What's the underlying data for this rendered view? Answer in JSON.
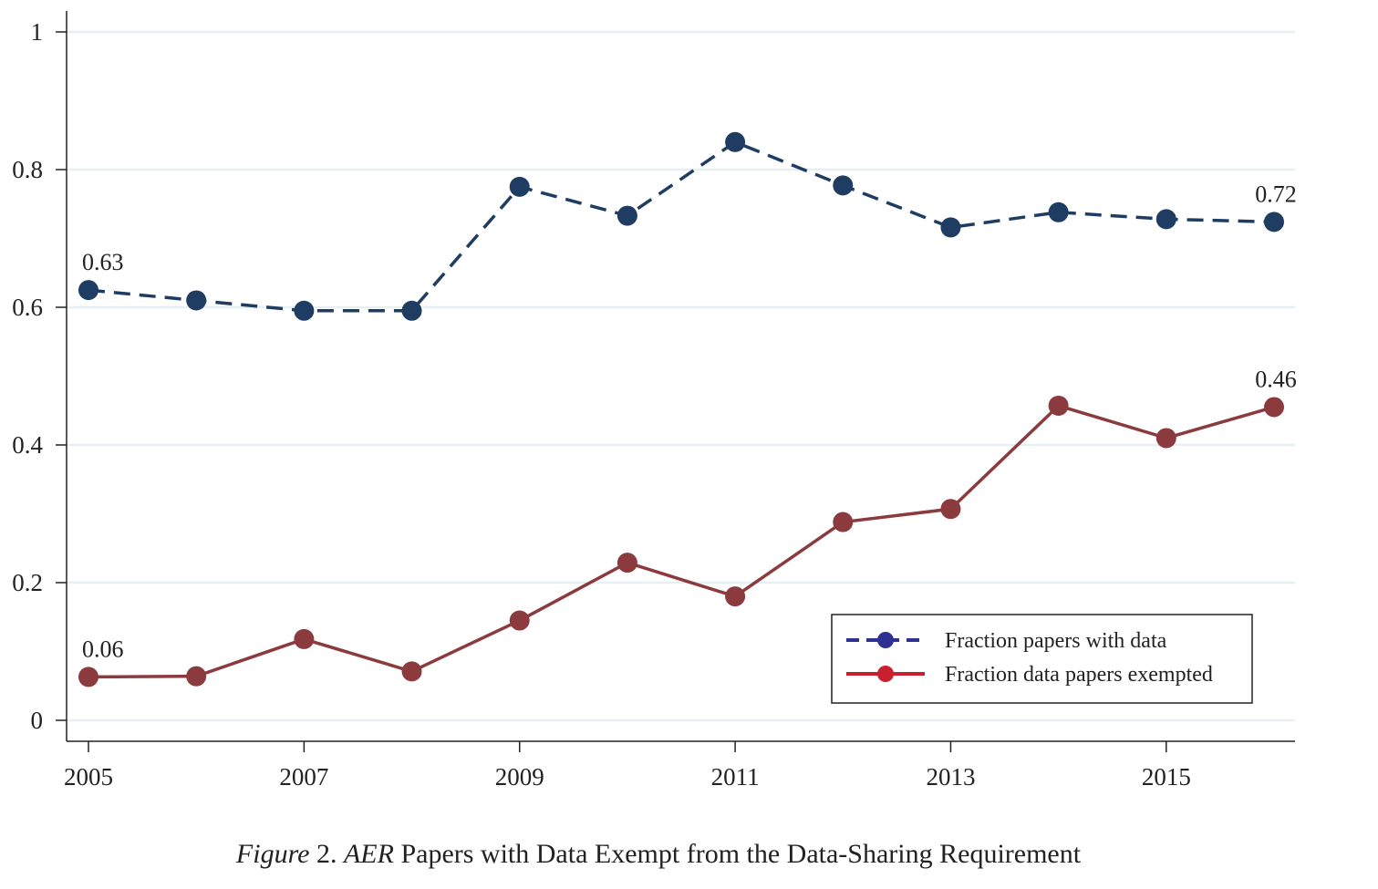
{
  "chart_data": {
    "type": "line",
    "title": "",
    "xlabel": "",
    "ylabel": "",
    "x": [
      2005,
      2006,
      2007,
      2008,
      2009,
      2010,
      2011,
      2012,
      2013,
      2014,
      2015,
      2016
    ],
    "xticks": [
      "2005",
      "2007",
      "2009",
      "2011",
      "2013",
      "2015"
    ],
    "yticks": [
      "0",
      "0.2",
      "0.4",
      "0.6",
      "0.8",
      "1"
    ],
    "xlim": [
      2004.8,
      2016.2
    ],
    "ylim": [
      -0.03,
      1.03
    ],
    "grid": true,
    "legend_position": "bottom-right",
    "series": [
      {
        "name": "Fraction papers with data",
        "style": "dashed",
        "color": "#1f3d63",
        "legend_color": "#2e3192",
        "values": [
          0.625,
          0.61,
          0.595,
          0.595,
          0.775,
          0.733,
          0.84,
          0.777,
          0.716,
          0.738,
          0.728,
          0.724
        ],
        "labels": [
          {
            "index": 0,
            "text": "0.63"
          },
          {
            "index": 11,
            "text": "0.72"
          }
        ]
      },
      {
        "name": "Fraction data papers exempted",
        "style": "solid",
        "color": "#8b3a3e",
        "legend_color": "#c8202f",
        "values": [
          0.063,
          0.064,
          0.118,
          0.071,
          0.145,
          0.229,
          0.18,
          0.288,
          0.307,
          0.457,
          0.41,
          0.455
        ],
        "labels": [
          {
            "index": 0,
            "text": "0.06"
          },
          {
            "index": 11,
            "text": "0.46"
          }
        ]
      }
    ]
  },
  "caption": {
    "figure": "Figure",
    "number": " 2. ",
    "journal": "AER",
    "text": " Papers with Data Exempt from the Data-Sharing Requirement"
  }
}
